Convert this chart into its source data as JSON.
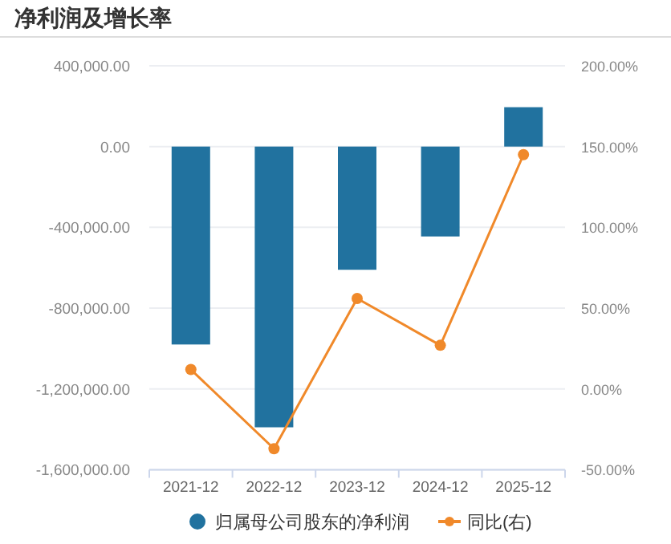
{
  "chart_data": {
    "type": "bar",
    "title": "净利润及增长率",
    "categories": [
      "2021-12",
      "2022-12",
      "2023-12",
      "2024-12",
      "2025-12"
    ],
    "series": [
      {
        "name": "归属母公司股东的净利润",
        "color": "#21729f",
        "values": [
          -980000,
          -1390000,
          -610000,
          -445000,
          195000
        ]
      },
      {
        "name": "同比(右)",
        "type": "line",
        "axis": "y2",
        "color": "#f0892a",
        "values": [
          12,
          -37,
          56,
          27,
          145
        ]
      }
    ],
    "ylim": [
      -1600000,
      400000
    ],
    "yticks": [
      {
        "value": -1600000,
        "label": "-1,600,000.00"
      },
      {
        "value": -1200000,
        "label": "-1,200,000.00"
      },
      {
        "value": -800000,
        "label": "-800,000.00"
      },
      {
        "value": -400000,
        "label": "-400,000.00"
      },
      {
        "value": 0,
        "label": "0.00"
      },
      {
        "value": 400000,
        "label": "400,000.00"
      }
    ],
    "y2lim": [
      -50,
      200
    ],
    "y2ticks": [
      {
        "value": -50,
        "label": "-50.00%"
      },
      {
        "value": 0,
        "label": "0.00%"
      },
      {
        "value": 50,
        "label": "50.00%"
      },
      {
        "value": 100,
        "label": "100.00%"
      },
      {
        "value": 150,
        "label": "150.00%"
      },
      {
        "value": 200,
        "label": "200.00%"
      }
    ],
    "grid": "y",
    "legend": "bottom",
    "marker": "circle"
  }
}
